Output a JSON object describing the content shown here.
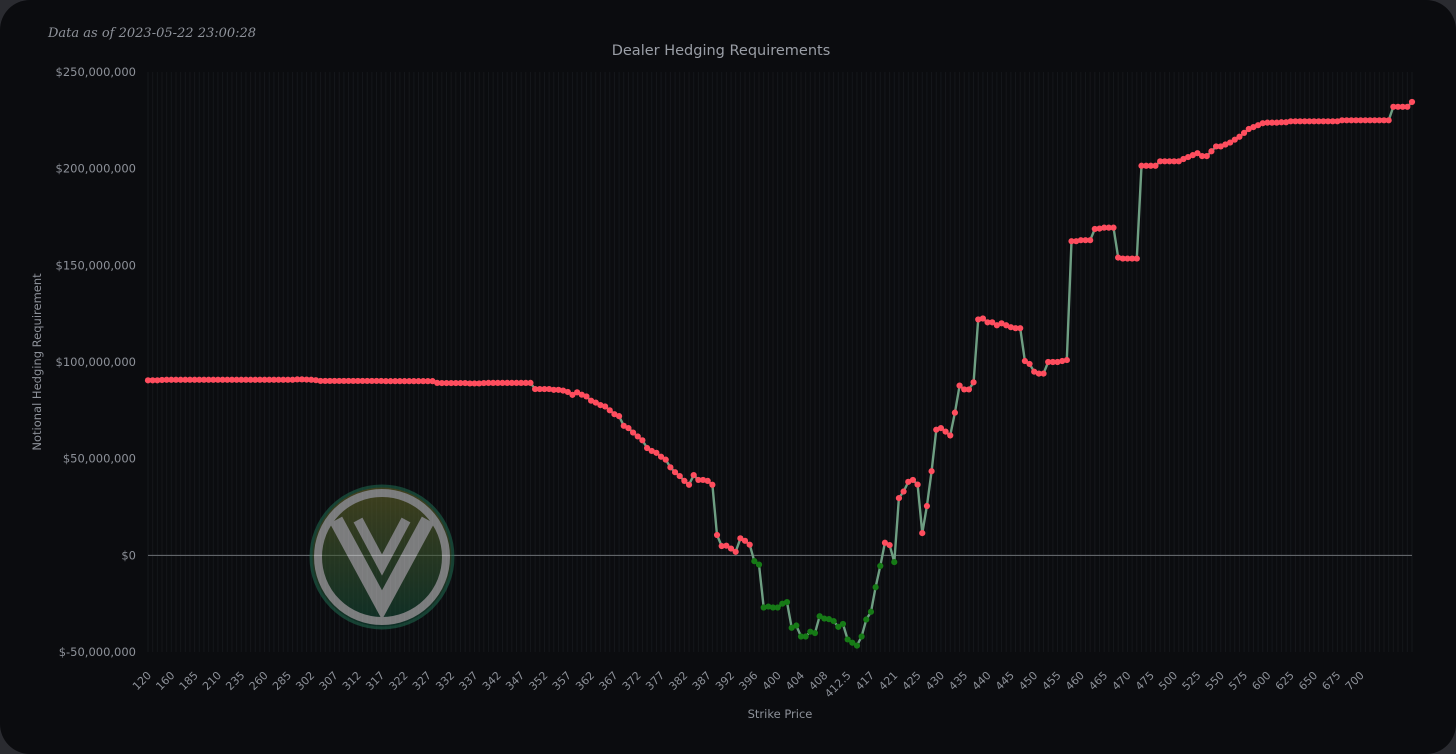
{
  "as_of_text": "Data as of 2023-05-22 23:00:28",
  "colors": {
    "background": "#0b0c0f",
    "positive_marker": "#ff4d5e",
    "negative_marker": "#167a16",
    "line": "#6e9e82",
    "zero_line": "#6d7075"
  },
  "logo": {
    "icon": "vw-style-watermark-logo"
  },
  "chart_data": {
    "type": "line",
    "title": "Dealer Hedging Requirements",
    "xlabel": "Strike Price",
    "ylabel": "Notional Hedging Requirement",
    "ylim": [
      -50000000,
      250000000
    ],
    "y_ticks": [
      {
        "value": 250000000,
        "label": "$250,000,000"
      },
      {
        "value": 200000000,
        "label": "$200,000,000"
      },
      {
        "value": 150000000,
        "label": "$150,000,000"
      },
      {
        "value": 100000000,
        "label": "$100,000,000"
      },
      {
        "value": 50000000,
        "label": "$50,000,000"
      },
      {
        "value": 0,
        "label": "$0"
      },
      {
        "value": -50000000,
        "label": "$-50,000,000"
      }
    ],
    "x_tick_labels": [
      "120",
      "160",
      "185",
      "210",
      "235",
      "260",
      "285",
      "302",
      "307",
      "312",
      "317",
      "322",
      "327",
      "332",
      "337",
      "342",
      "347",
      "352",
      "357",
      "362",
      "367",
      "372",
      "377",
      "382",
      "387",
      "392",
      "396",
      "400",
      "404",
      "408",
      "412.5",
      "417",
      "421",
      "425",
      "430",
      "435",
      "440",
      "445",
      "450",
      "455",
      "460",
      "465",
      "470",
      "475",
      "500",
      "525",
      "550",
      "575",
      "600",
      "625",
      "650",
      "675",
      "700"
    ],
    "grid": true,
    "legend": "none",
    "series": [
      {
        "values": [
          90.5,
          90.5,
          90.5,
          90.7,
          90.8,
          90.8,
          90.8,
          90.8,
          90.8,
          90.8,
          90.8,
          90.8,
          90.8,
          90.8,
          90.8,
          90.8,
          90.8,
          90.8,
          90.8,
          90.8,
          90.8,
          90.8,
          90.8,
          90.8,
          90.8,
          90.8,
          90.8,
          90.8,
          90.8,
          90.8,
          90.8,
          90.8,
          91.0,
          91.0,
          90.9,
          90.8,
          90.6,
          90.2,
          90.2,
          90.2,
          90.2,
          90.2,
          90.2,
          90.2,
          90.2,
          90.2,
          90.2,
          90.2,
          90.2,
          90.2,
          90.2,
          90.1,
          90.1,
          90.1,
          90.1,
          90.1,
          90.1,
          90.1,
          90.1,
          90.1,
          90.1,
          90.1,
          89.2,
          89.1,
          89.1,
          89.1,
          89.1,
          89.1,
          89.1,
          88.9,
          88.9,
          88.9,
          89.1,
          89.2,
          89.2,
          89.2,
          89.2,
          89.2,
          89.2,
          89.2,
          89.2,
          89.2,
          89.2,
          86.0,
          86.0,
          86.0,
          86.0,
          85.6,
          85.6,
          85.2,
          84.5,
          83.0,
          84.3,
          83.1,
          82.2,
          80.0,
          79.0,
          77.7,
          77.0,
          75.0,
          73.0,
          72.0,
          67.0,
          65.8,
          63.5,
          61.5,
          59.5,
          55.5,
          54.0,
          53.0,
          51.0,
          49.5,
          45.5,
          43.0,
          41.0,
          38.5,
          36.5,
          41.5,
          39.0,
          39.0,
          38.5,
          36.5,
          10.5,
          4.8,
          5.0,
          3.5,
          1.8,
          8.8,
          7.5,
          5.5,
          -3.0,
          -4.8,
          -27.0,
          -26.5,
          -27.0,
          -27.0,
          -25.0,
          -24.2,
          -37.5,
          -36.3,
          -42.0,
          -42.0,
          -39.5,
          -40.2,
          -31.5,
          -32.7,
          -33.0,
          -34.0,
          -37.0,
          -35.5,
          -43.5,
          -45.2,
          -46.7,
          -42.0,
          -33.2,
          -29.2,
          -16.5,
          -5.5,
          6.5,
          5.3,
          -3.5,
          29.6,
          33.0,
          38.0,
          39.0,
          36.6,
          11.5,
          25.5,
          43.5,
          65.0,
          65.8,
          64.0,
          62.0,
          73.8,
          87.8,
          85.8,
          85.8,
          89.5,
          122.0,
          122.5,
          120.5,
          120.5,
          119.0,
          120.0,
          119.0,
          118.0,
          117.5,
          117.5,
          100.5,
          99.0,
          95.0,
          94.0,
          94.0,
          100.0,
          100.0,
          100.0,
          100.5,
          101.0,
          162.5,
          162.5,
          163.0,
          163.0,
          163.0,
          168.8,
          169.0,
          169.5,
          169.5,
          169.5,
          154.0,
          153.5,
          153.5,
          153.5,
          153.5,
          201.5,
          201.5,
          201.5,
          201.5,
          203.8,
          203.8,
          203.8,
          203.8,
          203.8,
          205.0,
          206.0,
          207.0,
          208.0,
          206.5,
          206.5,
          209.0,
          211.5,
          211.5,
          212.5,
          213.5,
          215.0,
          216.5,
          218.5,
          220.5,
          221.5,
          222.5,
          223.5,
          223.8,
          223.8,
          223.8,
          224.0,
          224.0,
          224.5,
          224.5,
          224.5,
          224.5,
          224.5,
          224.5,
          224.5,
          224.5,
          224.5,
          224.5,
          224.5,
          225.0,
          225.0,
          225.0,
          225.0,
          225.0,
          225.0,
          225.0,
          225.0,
          225.0,
          225.0,
          225.0,
          232.0,
          232.0,
          232.0,
          232.0,
          234.5
        ]
      }
    ],
    "values_unit": "million USD"
  }
}
